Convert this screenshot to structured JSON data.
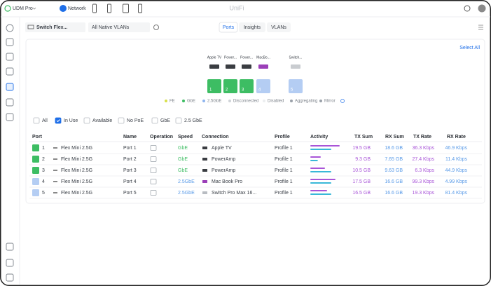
{
  "top_bar": {
    "console": "UDM Pro",
    "app": "Network",
    "brand": "UniFi"
  },
  "toolbar": {
    "device_select": "Switch Flex...",
    "vlan_select": "All Native VLANs",
    "tabs": [
      "Ports",
      "Insights",
      "VLANs"
    ],
    "active_tab": 0
  },
  "panel": {
    "select_all": "Select All",
    "ports": [
      {
        "label": "Apple TV",
        "number": "1",
        "color": "#3dbd63"
      },
      {
        "label": "Power...",
        "number": "2",
        "color": "#3dbd63"
      },
      {
        "label": "Power...",
        "number": "3",
        "color": "#3dbd63"
      },
      {
        "label": "MacBo...",
        "number": "4",
        "color": "#b4cdf3"
      },
      {
        "label": "Switch...",
        "number": "5",
        "color": "#b4cdf3"
      }
    ],
    "legend": [
      {
        "name": "FE",
        "color": "#d8e04a"
      },
      {
        "name": "GbE",
        "color": "#3dbd63"
      },
      {
        "name": "2.5GbE",
        "color": "#8fb5ee"
      },
      {
        "name": "Disconnected",
        "color": "#cfd3d8"
      },
      {
        "name": "Disabled",
        "color": "#eceef0"
      },
      {
        "name": "Aggregating",
        "color": "#9aa1a9"
      },
      {
        "name": "Mirror",
        "color": "#9aa1a9"
      }
    ]
  },
  "filters": {
    "items": [
      "All",
      "In Use",
      "Available",
      "No PoE",
      "GbE",
      "2.5 GbE"
    ],
    "checked": 1
  },
  "table": {
    "columns": [
      "Port",
      "Name",
      "Operation",
      "Speed",
      "Connection",
      "Profile",
      "Activity",
      "TX Sum",
      "RX Sum",
      "TX Rate",
      "RX Rate"
    ],
    "rows": [
      {
        "port": "1",
        "device": "Flex Mini 2.5G",
        "name": "Port 1",
        "speed": "GbE",
        "speed_color": "#3dbd63",
        "connection": "Apple TV",
        "profile": "Profile 1",
        "activity_tx": 0.7,
        "activity_rx": 0.5,
        "tx_sum": "19.5 GB",
        "rx_sum": "18.6 GB",
        "tx_rate": "36.3 Kbps",
        "rx_rate": "46.9 Kbps"
      },
      {
        "port": "2",
        "device": "Flex Mini 2.5G",
        "name": "Port 2",
        "speed": "GbE",
        "speed_color": "#3dbd63",
        "connection": "PowerAmp",
        "profile": "Profile 1",
        "activity_tx": 0.25,
        "activity_rx": 0.18,
        "tx_sum": "9.3 GB",
        "rx_sum": "7.65 GB",
        "tx_rate": "27.4 Kbps",
        "rx_rate": "11.4 Kbps"
      },
      {
        "port": "3",
        "device": "Flex Mini 2.5G",
        "name": "Port 3",
        "speed": "GbE",
        "speed_color": "#3dbd63",
        "connection": "PowerAmp",
        "profile": "Profile 1",
        "activity_tx": 0.35,
        "activity_rx": 0.5,
        "tx_sum": "10.5 GB",
        "rx_sum": "9.63 GB",
        "tx_rate": "6.3 Kbps",
        "rx_rate": "44.9 Kbps"
      },
      {
        "port": "4",
        "device": "Flex Mini 2.5G",
        "name": "Port 4",
        "speed": "2.5GbE",
        "speed_color": "#5a9be8",
        "connection": "Mac Book Pro",
        "profile": "Profile 1",
        "activity_tx": 0.6,
        "activity_rx": 0.5,
        "tx_sum": "17.5 GB",
        "rx_sum": "16.6 GB",
        "tx_rate": "99.3 Kbps",
        "rx_rate": "4.99 Kbps"
      },
      {
        "port": "5",
        "device": "Flex Mini 2.5G",
        "name": "Port 5",
        "speed": "2.5GbE",
        "speed_color": "#5a9be8",
        "connection": "Switch Pro Max 16...",
        "profile": "Profile 1",
        "activity_tx": 0.4,
        "activity_rx": 0.5,
        "tx_sum": "16.5 GB",
        "rx_sum": "16.6 GB",
        "tx_rate": "19.3 Kbps",
        "rx_rate": "81.4 Kbps"
      }
    ]
  }
}
